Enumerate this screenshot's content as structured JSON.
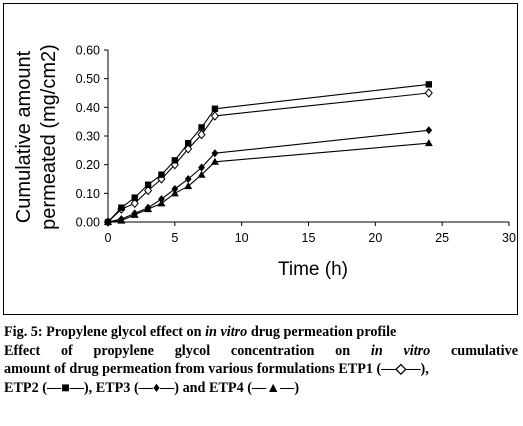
{
  "figure": {
    "caption_title_prefix": "Fig. 5: Propylene glycol effect on ",
    "caption_title_italic": "in vitro",
    "caption_title_suffix": " drug permeation profile",
    "caption_line2_prefix": "Effect of propylene glycol concentration on ",
    "caption_line2_italic": "in vitro",
    "caption_line2_suffix": " cumulative",
    "caption_line3": "amount of drug permeation from various formulations ETP1 (—◇—),",
    "caption_line4": "ETP2 (—■—), ETP3 (—♦—) and ETP4 (—▲—)"
  },
  "chart_data": {
    "type": "line",
    "xlabel": "Time (h)",
    "ylabel_line1": "Cumulative amount",
    "ylabel_line2": "permeated (mg/cm2)",
    "xlim": [
      0,
      30
    ],
    "ylim": [
      0,
      0.6
    ],
    "xticks": [
      "0",
      "5",
      "10",
      "15",
      "20",
      "25",
      "30"
    ],
    "yticks": [
      "0.00",
      "0.10",
      "0.20",
      "0.30",
      "0.40",
      "0.50",
      "0.60"
    ],
    "grid": false,
    "x": [
      0,
      1,
      2,
      3,
      4,
      5,
      6,
      7,
      8,
      24
    ],
    "series": [
      {
        "name": "ETP1",
        "marker": "diamond-open",
        "color": "#000000",
        "values": [
          0.0,
          0.045,
          0.065,
          0.11,
          0.15,
          0.2,
          0.255,
          0.305,
          0.37,
          0.45
        ]
      },
      {
        "name": "ETP2",
        "marker": "square-filled",
        "color": "#000000",
        "values": [
          0.0,
          0.05,
          0.085,
          0.13,
          0.165,
          0.215,
          0.275,
          0.33,
          0.395,
          0.48
        ]
      },
      {
        "name": "ETP3",
        "marker": "diamond-filled",
        "color": "#000000",
        "values": [
          0.0,
          0.01,
          0.03,
          0.05,
          0.08,
          0.115,
          0.15,
          0.19,
          0.24,
          0.32
        ]
      },
      {
        "name": "ETP4",
        "marker": "triangle-filled",
        "color": "#000000",
        "values": [
          0.0,
          0.005,
          0.025,
          0.045,
          0.065,
          0.1,
          0.125,
          0.165,
          0.21,
          0.275
        ]
      }
    ]
  }
}
